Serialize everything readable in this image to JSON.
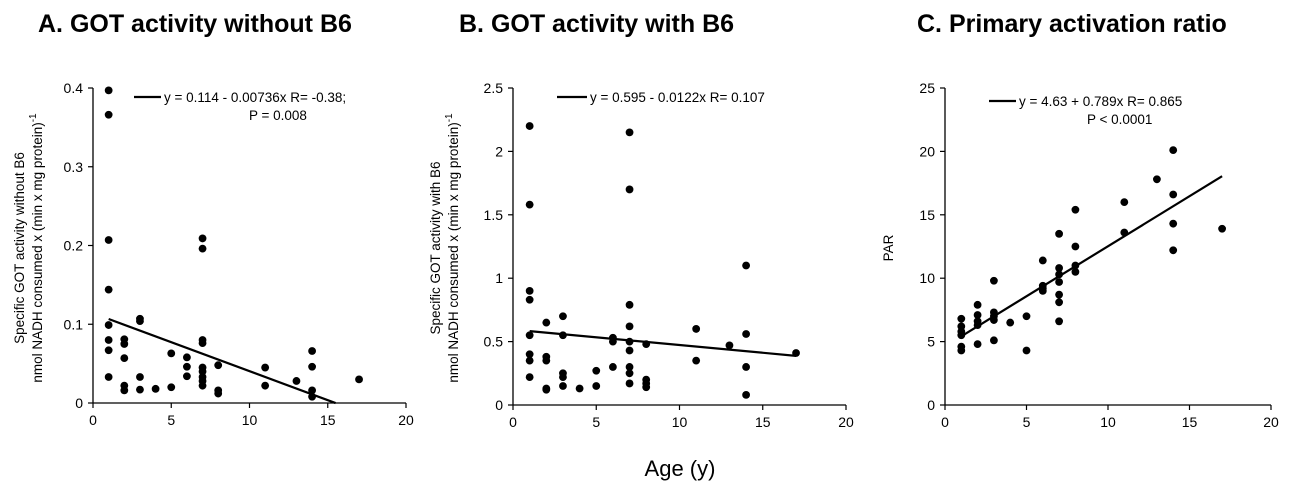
{
  "shared_xlabel": "Age (y)",
  "chart_data": [
    {
      "type": "scatter",
      "title": "A. GOT activity without B6",
      "ylabel_line1": "Specific GOT activity without B6",
      "ylabel_line2": "nmol NADH consumed x (min x mg protein)",
      "ylabel_sup": "-1",
      "xlim": [
        0,
        20
      ],
      "ylim": [
        0,
        0.4
      ],
      "xticks": [
        0,
        5,
        10,
        15,
        20
      ],
      "yticks": [
        0,
        0.1,
        0.2,
        0.3,
        0.4
      ],
      "ytick_labels": [
        "0",
        "0.1",
        "0.2",
        "0.3",
        "0.4"
      ],
      "fit": {
        "intercept": 0.114,
        "slope": -0.00736,
        "x_range": [
          1,
          15.5
        ]
      },
      "annotation_line1": "y = 0.114 - 0.00736x    R= -0.38;",
      "annotation_line2": "P = 0.008",
      "points": [
        [
          1,
          0.397
        ],
        [
          1,
          0.366
        ],
        [
          1,
          0.207
        ],
        [
          1,
          0.144
        ],
        [
          1,
          0.099
        ],
        [
          1,
          0.08
        ],
        [
          1,
          0.067
        ],
        [
          1,
          0.033
        ],
        [
          2,
          0.081
        ],
        [
          2,
          0.075
        ],
        [
          2,
          0.057
        ],
        [
          2,
          0.022
        ],
        [
          2,
          0.016
        ],
        [
          3,
          0.107
        ],
        [
          3,
          0.104
        ],
        [
          3,
          0.033
        ],
        [
          3,
          0.017
        ],
        [
          4,
          0.018
        ],
        [
          5,
          0.063
        ],
        [
          5,
          0.02
        ],
        [
          6,
          0.058
        ],
        [
          6,
          0.046
        ],
        [
          6,
          0.034
        ],
        [
          7,
          0.209
        ],
        [
          7,
          0.196
        ],
        [
          7,
          0.08
        ],
        [
          7,
          0.076
        ],
        [
          7,
          0.045
        ],
        [
          7,
          0.04
        ],
        [
          7,
          0.033
        ],
        [
          7,
          0.028
        ],
        [
          7,
          0.022
        ],
        [
          8,
          0.048
        ],
        [
          8,
          0.016
        ],
        [
          8,
          0.012
        ],
        [
          11,
          0.045
        ],
        [
          11,
          0.022
        ],
        [
          13,
          0.028
        ],
        [
          14,
          0.066
        ],
        [
          14,
          0.046
        ],
        [
          14,
          0.016
        ],
        [
          14,
          0.008
        ],
        [
          17,
          0.03
        ]
      ]
    },
    {
      "type": "scatter",
      "title": "B. GOT activity with B6",
      "ylabel_line1": "Specific GOT activity with B6",
      "ylabel_line2": "nmol NADH consumed x (min x mg protein)",
      "ylabel_sup": "-1",
      "xlim": [
        0,
        20
      ],
      "ylim": [
        0,
        2.5
      ],
      "xticks": [
        0,
        5,
        10,
        15,
        20
      ],
      "yticks": [
        0,
        0.5,
        1,
        1.5,
        2,
        2.5
      ],
      "ytick_labels": [
        "0",
        "0.5",
        "1",
        "1.5",
        "2",
        "2.5"
      ],
      "fit": {
        "intercept": 0.595,
        "slope": -0.0122,
        "x_range": [
          1,
          17
        ]
      },
      "annotation_line1": "y = 0.595 - 0.0122x    R= 0.107",
      "annotation_line2": "",
      "points": [
        [
          1,
          2.2
        ],
        [
          1,
          1.58
        ],
        [
          1,
          0.9
        ],
        [
          1,
          0.83
        ],
        [
          1,
          0.55
        ],
        [
          1,
          0.4
        ],
        [
          1,
          0.35
        ],
        [
          1,
          0.22
        ],
        [
          2,
          0.65
        ],
        [
          2,
          0.38
        ],
        [
          2,
          0.35
        ],
        [
          2,
          0.13
        ],
        [
          2,
          0.12
        ],
        [
          3,
          0.7
        ],
        [
          3,
          0.55
        ],
        [
          3,
          0.25
        ],
        [
          3,
          0.22
        ],
        [
          3,
          0.15
        ],
        [
          4,
          0.13
        ],
        [
          5,
          0.27
        ],
        [
          5,
          0.15
        ],
        [
          6,
          0.53
        ],
        [
          6,
          0.5
        ],
        [
          6,
          0.3
        ],
        [
          7,
          2.15
        ],
        [
          7,
          1.7
        ],
        [
          7,
          0.79
        ],
        [
          7,
          0.62
        ],
        [
          7,
          0.5
        ],
        [
          7,
          0.43
        ],
        [
          7,
          0.3
        ],
        [
          7,
          0.25
        ],
        [
          7,
          0.17
        ],
        [
          8,
          0.48
        ],
        [
          8,
          0.2
        ],
        [
          8,
          0.17
        ],
        [
          8,
          0.14
        ],
        [
          11,
          0.6
        ],
        [
          11,
          0.35
        ],
        [
          13,
          0.47
        ],
        [
          14,
          1.1
        ],
        [
          14,
          0.56
        ],
        [
          14,
          0.3
        ],
        [
          14,
          0.08
        ],
        [
          17,
          0.41
        ]
      ]
    },
    {
      "type": "scatter",
      "title": "C. Primary activation ratio",
      "ylabel_line1": "PAR",
      "ylabel_line2": "",
      "ylabel_sup": "",
      "xlim": [
        0,
        20
      ],
      "ylim": [
        0,
        25
      ],
      "xticks": [
        0,
        5,
        10,
        15,
        20
      ],
      "yticks": [
        0,
        5,
        10,
        15,
        20,
        25
      ],
      "ytick_labels": [
        "0",
        "5",
        "10",
        "15",
        "20",
        "25"
      ],
      "fit": {
        "intercept": 4.63,
        "slope": 0.789,
        "x_range": [
          1,
          17
        ]
      },
      "annotation_line1": "y = 4.63 + 0.789x    R= 0.865",
      "annotation_line2": "P < 0.0001",
      "points": [
        [
          1,
          6.8
        ],
        [
          1,
          6.2
        ],
        [
          1,
          5.8
        ],
        [
          1,
          5.5
        ],
        [
          1,
          4.6
        ],
        [
          1,
          4.3
        ],
        [
          2,
          7.9
        ],
        [
          2,
          7.1
        ],
        [
          2,
          6.6
        ],
        [
          2,
          6.3
        ],
        [
          2,
          4.8
        ],
        [
          3,
          9.8
        ],
        [
          3,
          7.3
        ],
        [
          3,
          7.0
        ],
        [
          3,
          6.7
        ],
        [
          3,
          5.1
        ],
        [
          4,
          6.5
        ],
        [
          5,
          7.0
        ],
        [
          5,
          4.3
        ],
        [
          6,
          11.4
        ],
        [
          6,
          9.4
        ],
        [
          6,
          9.2
        ],
        [
          6,
          9.0
        ],
        [
          7,
          13.5
        ],
        [
          7,
          10.8
        ],
        [
          7,
          10.3
        ],
        [
          7,
          9.7
        ],
        [
          7,
          8.7
        ],
        [
          7,
          8.1
        ],
        [
          7,
          6.6
        ],
        [
          8,
          15.4
        ],
        [
          8,
          12.5
        ],
        [
          8,
          11.0
        ],
        [
          8,
          10.5
        ],
        [
          11,
          16.0
        ],
        [
          11,
          13.6
        ],
        [
          13,
          17.8
        ],
        [
          14,
          20.1
        ],
        [
          14,
          16.6
        ],
        [
          14,
          14.3
        ],
        [
          14,
          12.2
        ],
        [
          17,
          13.9
        ]
      ]
    }
  ]
}
